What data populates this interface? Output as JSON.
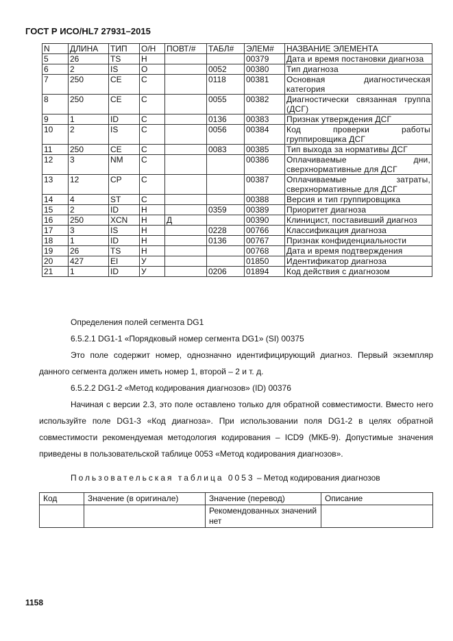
{
  "header": "ГОСТ Р ИСО/HL7 27931–2015",
  "table": {
    "columns": [
      "N",
      "ДЛИНА",
      "ТИП",
      "О/Н",
      "ПОВТ/#",
      "ТАБЛ#",
      "ЭЛЕМ#",
      "НАЗВАНИЕ ЭЛЕМЕНТА"
    ],
    "rows": [
      [
        "5",
        "26",
        "TS",
        "Н",
        "",
        "",
        "00379",
        "Дата и время постановки диагноза"
      ],
      [
        "6",
        "2",
        "IS",
        "О",
        "",
        "0052",
        "00380",
        "Тип диагноза"
      ],
      [
        "7",
        "250",
        "CE",
        "С",
        "",
        "0118",
        "00381",
        "Основная диагностическая категория"
      ],
      [
        "8",
        "250",
        "CE",
        "С",
        "",
        "0055",
        "00382",
        "Диагностически связанная группа (ДСГ)"
      ],
      [
        "9",
        "1",
        "ID",
        "С",
        "",
        "0136",
        "00383",
        "Признак утверждения ДСГ"
      ],
      [
        "10",
        "2",
        "IS",
        "С",
        "",
        "0056",
        "00384",
        "Код проверки работы группировщика ДСГ"
      ],
      [
        "11",
        "250",
        "CE",
        "С",
        "",
        "0083",
        "00385",
        "Тип выхода за нормативы ДСГ"
      ],
      [
        "12",
        "3",
        "NM",
        "С",
        "",
        "",
        "00386",
        "Оплачиваемые дни, сверхнормативные для ДСГ"
      ],
      [
        "13",
        "12",
        "CP",
        "С",
        "",
        "",
        "00387",
        "Оплачиваемые затраты, сверхнормативные для ДСГ"
      ],
      [
        "14",
        "4",
        "ST",
        "С",
        "",
        "",
        "00388",
        "Версия и тип группировщика"
      ],
      [
        "15",
        "2",
        "ID",
        "Н",
        "",
        "0359",
        "00389",
        "Приоритет диагноза"
      ],
      [
        "16",
        "250",
        "XCN",
        "Н",
        "Д",
        "",
        "00390",
        "Клиницист, поставивший диагноз"
      ],
      [
        "17",
        "3",
        "IS",
        "Н",
        "",
        "0228",
        "00766",
        "Классификация диагноза"
      ],
      [
        "18",
        "1",
        "ID",
        "Н",
        "",
        "0136",
        "00767",
        "Признак конфиденциальности"
      ],
      [
        "19",
        "26",
        "TS",
        "Н",
        "",
        "",
        "00768",
        "Дата и время подтверждения"
      ],
      [
        "20",
        "427",
        "EI",
        "У",
        "",
        "",
        "01850",
        "Идентификатор диагноза"
      ],
      [
        "21",
        "1",
        "ID",
        "У",
        "",
        "0206",
        "01894",
        "Код действия с диагнозом"
      ]
    ]
  },
  "paragraphs": [
    "Определения полей сегмента DG1",
    "6.5.2.1 DG1-1 «Порядковый номер сегмента DG1» (SI) 00375",
    "Это поле содержит номер, однозначно идентифицирующий диагноз. Первый экземпляр данного сегмента должен иметь номер 1, второй – 2 и т. д.",
    "6.5.2.2 DG1-2 «Метод кодирования диагнозов» (ID) 00376",
    "Начиная с версии 2.3, это поле оставлено только для обратной совместимости. Вместо него используйте поле DG1-3 «Код диагноза». При использовании поля DG1-2 в целях обратной совместимости рекомендуемая методология кодирования – ICD9 (МКБ-9). Допустимые значения приведены в пользовательской таблице 0053 «Метод кодирования диагнозов»."
  ],
  "caption": {
    "prefix": "Пользовательская таблица 0053",
    "title": " – Метод кодирования диагнозов"
  },
  "table2": {
    "columns": [
      "Код",
      "Значение (в оригинале)",
      "Значение (перевод)",
      "Описание"
    ],
    "rows": [
      [
        "",
        "",
        "Рекомендованных значений нет",
        ""
      ]
    ]
  },
  "page_number": "1158"
}
